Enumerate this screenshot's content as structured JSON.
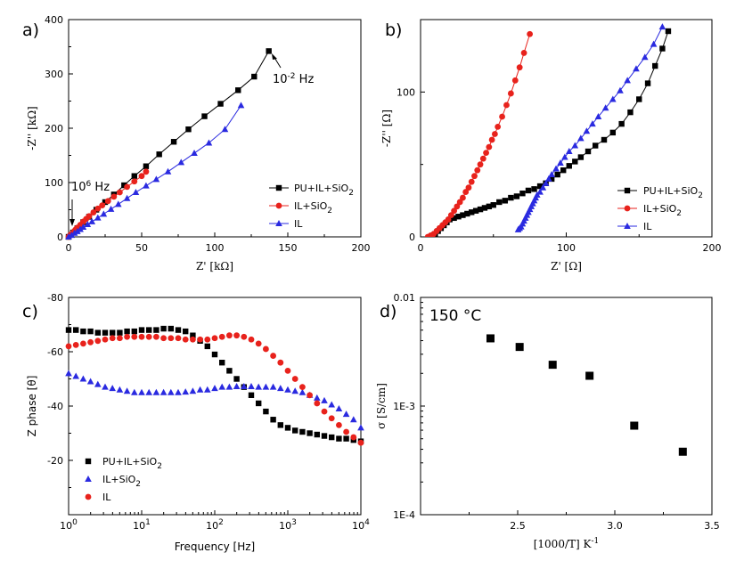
{
  "colors": {
    "black": "#000000",
    "red": "#e8221c",
    "blue": "#2a2ae0"
  },
  "chart_data": [
    {
      "panel": "a)",
      "type": "line",
      "xlabel": "Z' [kΩ]",
      "ylabel": "-Z'' [kΩ]",
      "xlim": [
        0,
        200
      ],
      "ylim": [
        0,
        400
      ],
      "xticks": [
        "0",
        "50",
        "100",
        "150",
        "200"
      ],
      "yticks": [
        "0",
        "100",
        "200",
        "300",
        "400"
      ],
      "annotations": [
        {
          "text": "10",
          "sup": "-2",
          "tail": " Hz"
        },
        {
          "text": "10",
          "sup": "6",
          "tail": " Hz"
        }
      ],
      "legend": [
        {
          "name": "PU+IL+SiO",
          "sub": "2"
        },
        {
          "name": "IL+SiO",
          "sub": "2"
        },
        {
          "name": "IL",
          "sub": ""
        }
      ],
      "series": [
        {
          "name": "PU+IL+SiO2",
          "color": "#000000",
          "marker": "square",
          "x": [
            0,
            3,
            6,
            10,
            14,
            19,
            25,
            31,
            38,
            45,
            53,
            62,
            72,
            82,
            93,
            104,
            116,
            127,
            137
          ],
          "y": [
            0,
            8,
            16,
            27,
            37,
            50,
            64,
            78,
            95,
            112,
            130,
            152,
            175,
            198,
            222,
            245,
            270,
            295,
            342
          ]
        },
        {
          "name": "IL+SiO2",
          "color": "#e8221c",
          "marker": "circle",
          "x": [
            0,
            1,
            2,
            3,
            4,
            5,
            6,
            8,
            10,
            12,
            14,
            17,
            20,
            23,
            27,
            31,
            35,
            40,
            45,
            50,
            53
          ],
          "y": [
            0,
            3,
            5,
            8,
            11,
            14,
            17,
            22,
            28,
            33,
            38,
            45,
            52,
            58,
            66,
            74,
            82,
            92,
            102,
            112,
            120
          ]
        },
        {
          "name": "IL",
          "color": "#2a2ae0",
          "marker": "triangle",
          "x": [
            0,
            2,
            4,
            6,
            8,
            10,
            13,
            16,
            20,
            24,
            29,
            34,
            40,
            46,
            53,
            60,
            68,
            77,
            86,
            96,
            107,
            118
          ],
          "y": [
            0,
            3,
            7,
            10,
            14,
            18,
            23,
            28,
            35,
            42,
            51,
            60,
            71,
            82,
            94,
            106,
            120,
            137,
            154,
            173,
            198,
            242
          ]
        }
      ]
    },
    {
      "panel": "b)",
      "type": "line",
      "xlabel": "Z' [Ω]",
      "ylabel": "-Z'' [Ω]",
      "xlim": [
        0,
        200
      ],
      "ylim": [
        0,
        150
      ],
      "xticks": [
        "0",
        "100",
        "200"
      ],
      "yticks": [
        "0",
        "100"
      ],
      "legend": [
        {
          "name": "PU+IL+SiO",
          "sub": "2"
        },
        {
          "name": "IL+SiO",
          "sub": "2"
        },
        {
          "name": "IL",
          "sub": ""
        }
      ],
      "series": [
        {
          "name": "PU+IL+SiO2",
          "color": "#000000",
          "marker": "square",
          "x": [
            8,
            10,
            12,
            14,
            16,
            18,
            20,
            23,
            26,
            29,
            32,
            35,
            38,
            41,
            44,
            47,
            50,
            54,
            58,
            62,
            66,
            70,
            74,
            78,
            82,
            86,
            90,
            94,
            98,
            102,
            106,
            110,
            115,
            120,
            126,
            132,
            138,
            144,
            150,
            156,
            161,
            166,
            170
          ],
          "y": [
            0,
            2,
            4,
            6,
            8,
            10,
            12,
            13,
            14,
            15,
            16,
            17,
            18,
            19,
            20,
            21,
            22,
            24,
            25,
            27,
            28,
            30,
            32,
            33,
            35,
            37,
            40,
            43,
            46,
            49,
            52,
            55,
            59,
            63,
            67,
            72,
            78,
            86,
            95,
            106,
            118,
            130,
            142
          ]
        },
        {
          "name": "IL+SiO2",
          "color": "#e8221c",
          "marker": "circle",
          "x": [
            5,
            7,
            9,
            11,
            13,
            15,
            17,
            19,
            21,
            23,
            25,
            27,
            29,
            31,
            33,
            35,
            37,
            39,
            41,
            43,
            45,
            47,
            49,
            51,
            53,
            56,
            59,
            62,
            65,
            68,
            71,
            75
          ],
          "y": [
            0,
            1,
            2,
            4,
            6,
            8,
            10,
            12,
            15,
            18,
            21,
            24,
            27,
            31,
            34,
            38,
            42,
            46,
            50,
            54,
            58,
            62,
            67,
            71,
            76,
            83,
            91,
            99,
            108,
            117,
            127,
            140
          ]
        },
        {
          "name": "IL",
          "color": "#2a2ae0",
          "marker": "triangle",
          "x": [
            67,
            68,
            69,
            70,
            71,
            72,
            73,
            74,
            75,
            76,
            77,
            78,
            79,
            80,
            82,
            84,
            86,
            88,
            90,
            93,
            96,
            99,
            102,
            106,
            110,
            114,
            118,
            122,
            127,
            132,
            137,
            142,
            148,
            154,
            160,
            166
          ],
          "y": [
            5,
            6,
            7,
            9,
            11,
            13,
            15,
            17,
            19,
            21,
            23,
            25,
            27,
            29,
            31,
            34,
            37,
            40,
            43,
            47,
            51,
            55,
            59,
            63,
            68,
            73,
            78,
            83,
            89,
            95,
            101,
            108,
            116,
            124,
            133,
            145
          ]
        }
      ]
    },
    {
      "panel": "c)",
      "type": "scatter",
      "xlabel": "Frequency [Hz]",
      "ylabel": "Z phase [θ]",
      "xscale": "log",
      "xlim": [
        1,
        10000
      ],
      "ylim": [
        0,
        -80
      ],
      "xticks": [
        {
          "base": "10",
          "exp": "0"
        },
        {
          "base": "10",
          "exp": "1"
        },
        {
          "base": "10",
          "exp": "2"
        },
        {
          "base": "10",
          "exp": "3"
        },
        {
          "base": "10",
          "exp": "4"
        }
      ],
      "yticks": [
        "-80",
        "-60",
        "-40",
        "-20"
      ],
      "legend": [
        {
          "name": "PU+IL+SiO",
          "sub": "2"
        },
        {
          "name": "IL+SiO",
          "sub": "2"
        },
        {
          "name": "IL",
          "sub": ""
        }
      ],
      "series": [
        {
          "name": "PU+IL+SiO2",
          "color": "#000000",
          "marker": "square",
          "logx": [
            0,
            0.1,
            0.2,
            0.3,
            0.4,
            0.5,
            0.6,
            0.7,
            0.8,
            0.9,
            1.0,
            1.1,
            1.2,
            1.3,
            1.4,
            1.5,
            1.6,
            1.7,
            1.8,
            1.9,
            2.0,
            2.1,
            2.2,
            2.3,
            2.4,
            2.5,
            2.6,
            2.7,
            2.8,
            2.9,
            3.0,
            3.1,
            3.2,
            3.3,
            3.4,
            3.5,
            3.6,
            3.7,
            3.8,
            3.9,
            4.0
          ],
          "y": [
            -68,
            -68,
            -67.5,
            -67.5,
            -67,
            -67,
            -67,
            -67,
            -67.5,
            -67.5,
            -68,
            -68,
            -68,
            -68.5,
            -68.5,
            -68,
            -67.5,
            -66,
            -64,
            -62,
            -59,
            -56,
            -53,
            -50,
            -47,
            -44,
            -41,
            -38,
            -35,
            -33,
            -32,
            -31,
            -30.5,
            -30,
            -29.5,
            -29,
            -28.5,
            -28,
            -28,
            -27.5,
            -27
          ]
        },
        {
          "name": "IL+SiO2",
          "color": "#2a2ae0",
          "marker": "triangle",
          "logx": [
            0,
            0.1,
            0.2,
            0.3,
            0.4,
            0.5,
            0.6,
            0.7,
            0.8,
            0.9,
            1.0,
            1.1,
            1.2,
            1.3,
            1.4,
            1.5,
            1.6,
            1.7,
            1.8,
            1.9,
            2.0,
            2.1,
            2.2,
            2.3,
            2.4,
            2.5,
            2.6,
            2.7,
            2.8,
            2.9,
            3.0,
            3.1,
            3.2,
            3.3,
            3.4,
            3.5,
            3.6,
            3.7,
            3.8,
            3.9,
            4.0
          ],
          "y": [
            -52,
            -51,
            -50,
            -49,
            -48,
            -47,
            -46.5,
            -46,
            -45.5,
            -45,
            -45,
            -45,
            -45,
            -45,
            -45,
            -45,
            -45.2,
            -45.5,
            -46,
            -46,
            -46.5,
            -47,
            -47,
            -47.2,
            -47.2,
            -47.2,
            -47,
            -47,
            -47,
            -46.5,
            -46,
            -45.5,
            -45,
            -44,
            -43,
            -42,
            -40.5,
            -39,
            -37,
            -35,
            -32
          ]
        },
        {
          "name": "IL",
          "color": "#e8221c",
          "marker": "circle",
          "logx": [
            0,
            0.1,
            0.2,
            0.3,
            0.4,
            0.5,
            0.6,
            0.7,
            0.8,
            0.9,
            1.0,
            1.1,
            1.2,
            1.3,
            1.4,
            1.5,
            1.6,
            1.7,
            1.8,
            1.9,
            2.0,
            2.1,
            2.2,
            2.3,
            2.4,
            2.5,
            2.6,
            2.7,
            2.8,
            2.9,
            3.0,
            3.1,
            3.2,
            3.3,
            3.4,
            3.5,
            3.6,
            3.7,
            3.8,
            3.9,
            4.0
          ],
          "y": [
            -62,
            -62.5,
            -63,
            -63.5,
            -64,
            -64.5,
            -65,
            -65,
            -65.5,
            -65.5,
            -65.5,
            -65.5,
            -65.5,
            -65,
            -65,
            -65,
            -64.5,
            -64.5,
            -64.5,
            -64.5,
            -65,
            -65.5,
            -66,
            -66,
            -65.5,
            -64.5,
            -63,
            -61,
            -58.5,
            -56,
            -53,
            -50,
            -47,
            -44,
            -41,
            -38,
            -35.5,
            -33,
            -30.5,
            -28.5,
            -26.5
          ]
        }
      ]
    },
    {
      "panel": "d)",
      "type": "scatter",
      "xlabel": "[1000/T]  K",
      "xlabel_sup": "-1",
      "ylabel": "σ [S/cm]",
      "yscale": "log",
      "xlim": [
        2.0,
        3.5
      ],
      "ylim": [
        0.0001,
        0.01
      ],
      "xticks": [
        "2.0",
        "2.5",
        "3.0",
        "3.5"
      ],
      "yticks": [
        "1E-4",
        "1E-3",
        "0.01"
      ],
      "annotation": "150 °C",
      "series": [
        {
          "name": "conductivity",
          "color": "#000000",
          "marker": "square",
          "x": [
            2.36,
            2.51,
            2.68,
            2.87,
            3.1,
            3.35
          ],
          "y": [
            0.0042,
            0.0035,
            0.0024,
            0.0019,
            0.00066,
            0.00038
          ]
        }
      ]
    }
  ]
}
